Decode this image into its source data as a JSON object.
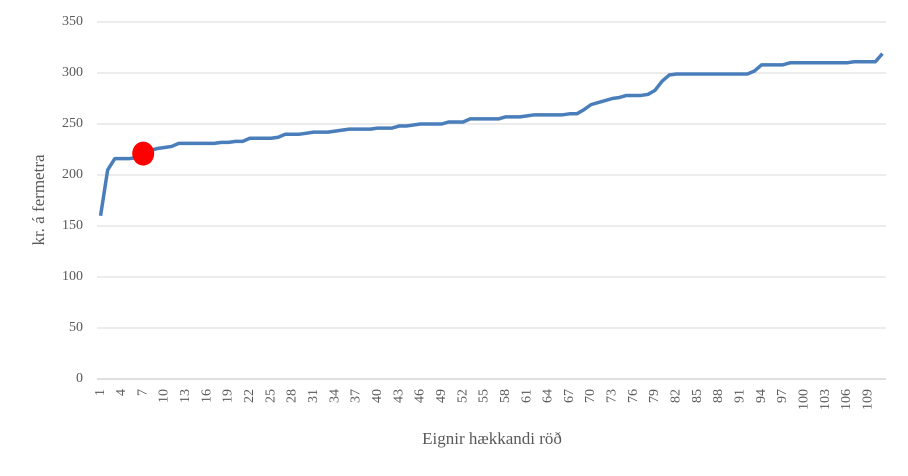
{
  "chart_data": {
    "type": "line",
    "y_label": "kr. á fermetra",
    "x_label": "Eignir hækkandi röð",
    "categories": [
      "1",
      null,
      null,
      "4",
      null,
      null,
      "7",
      null,
      null,
      "10",
      null,
      null,
      "13",
      null,
      null,
      "16",
      null,
      null,
      "19",
      null,
      null,
      "22",
      null,
      null,
      "25",
      null,
      null,
      "28",
      null,
      null,
      "31",
      null,
      null,
      "34",
      null,
      null,
      "37",
      null,
      null,
      "40",
      null,
      null,
      "43",
      null,
      null,
      "46",
      null,
      null,
      "49",
      null,
      null,
      "52",
      null,
      null,
      "55",
      null,
      null,
      "58",
      null,
      null,
      "61",
      null,
      null,
      "64",
      null,
      null,
      "67",
      null,
      null,
      "70",
      null,
      null,
      "73",
      null,
      null,
      "76",
      null,
      null,
      "79",
      null,
      null,
      "82",
      null,
      null,
      "85",
      null,
      null,
      "88",
      null,
      null,
      "91",
      null,
      null,
      "94",
      null,
      null,
      "97",
      null,
      null,
      "100",
      null,
      null,
      "103",
      null,
      null,
      "106",
      null,
      null,
      "109",
      null,
      null
    ],
    "series": [
      {
        "color": "#4a7ebb",
        "values": [
          160,
          205,
          216,
          216,
          216,
          217,
          221,
          224,
          226,
          227,
          228,
          231,
          231,
          231,
          231,
          231,
          231,
          232,
          232,
          233,
          233,
          236,
          236,
          236,
          236,
          237,
          240,
          240,
          240,
          241,
          242,
          242,
          242,
          243,
          244,
          245,
          245,
          245,
          245,
          246,
          246,
          246,
          248,
          248,
          249,
          250,
          250,
          250,
          250,
          252,
          252,
          252,
          255,
          255,
          255,
          255,
          255,
          257,
          257,
          257,
          258,
          259,
          259,
          259,
          259,
          259,
          260,
          260,
          264,
          269,
          271,
          273,
          275,
          276,
          278,
          278,
          278,
          279,
          283,
          292,
          298,
          299,
          299,
          299,
          299,
          299,
          299,
          299,
          299,
          299,
          299,
          299,
          302,
          308,
          308,
          308,
          308,
          310,
          310,
          310,
          310,
          310,
          310,
          310,
          310,
          310,
          311,
          311,
          311,
          311,
          319
        ]
      }
    ],
    "highlight": {
      "index": 6,
      "color": "#ff0000"
    },
    "ylim": [
      0,
      350
    ],
    "yticks": [
      0,
      50,
      100,
      150,
      200,
      250,
      300,
      350
    ],
    "grid": true
  }
}
